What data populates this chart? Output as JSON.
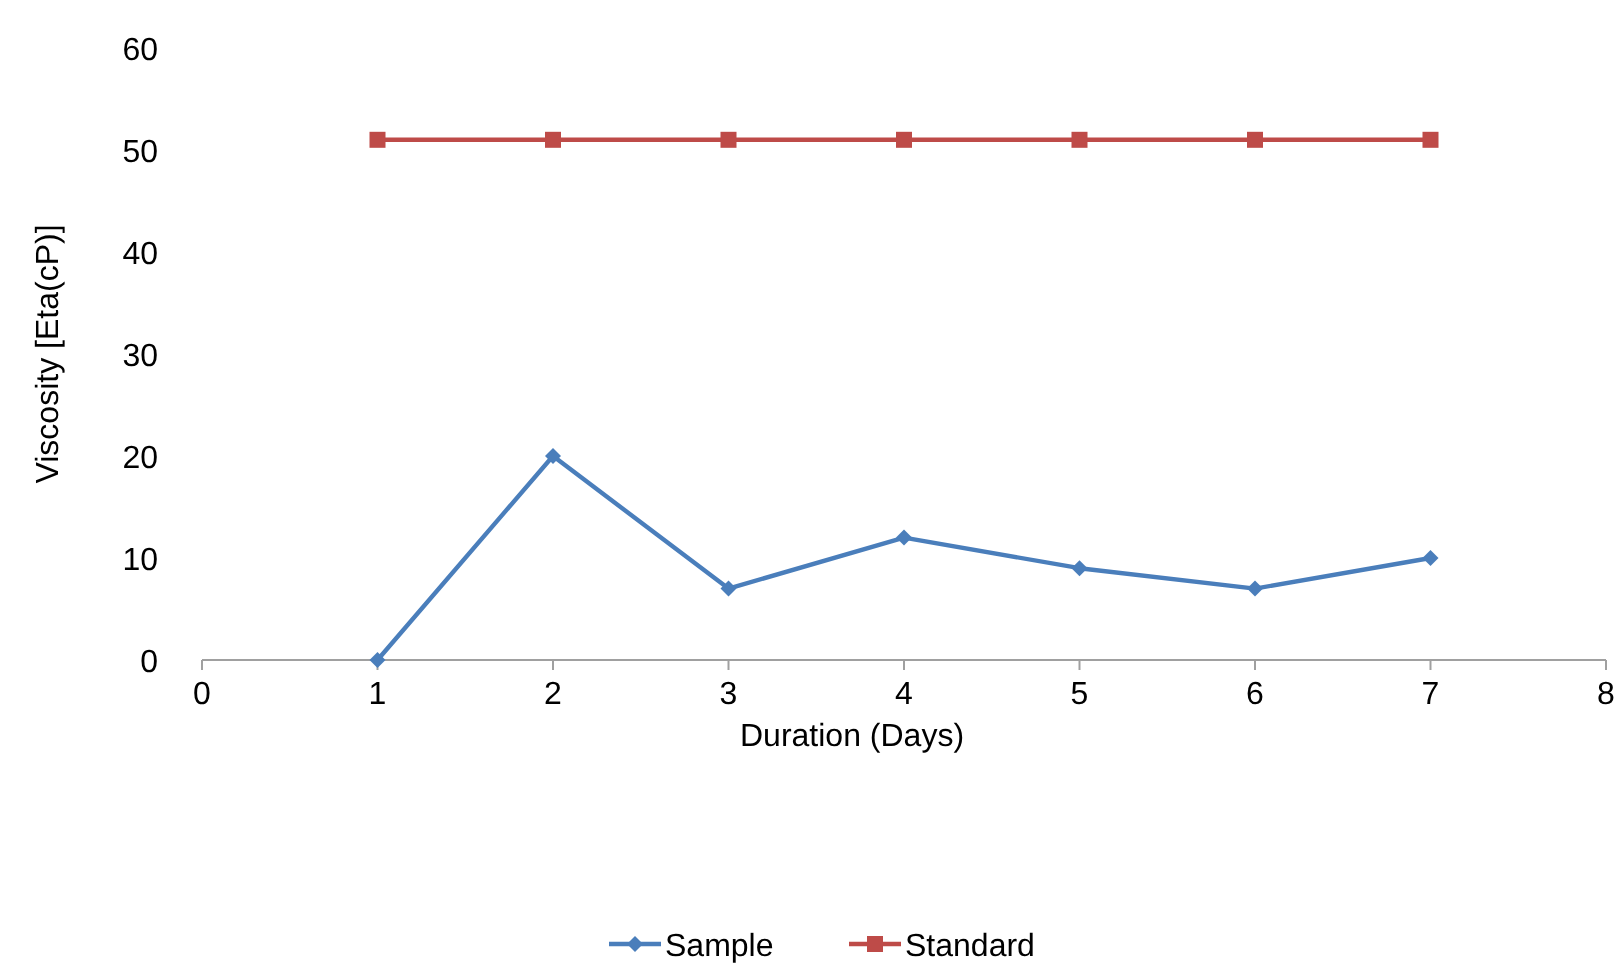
{
  "chart_data": {
    "type": "line",
    "xlabel": "Duration (Days)",
    "ylabel": "Viscosity [Eta(cP)]",
    "x": [
      1,
      2,
      3,
      4,
      5,
      6,
      7
    ],
    "series": [
      {
        "name": "Sample",
        "color": "#4a7ebb",
        "marker": "diamond",
        "values": [
          0,
          20,
          7,
          12,
          9,
          7,
          10
        ]
      },
      {
        "name": "Standard",
        "color": "#be4b48",
        "marker": "square",
        "values": [
          51,
          51,
          51,
          51,
          51,
          51,
          51
        ]
      }
    ],
    "xlim": [
      0,
      8
    ],
    "xticks": [
      0,
      1,
      2,
      3,
      4,
      5,
      6,
      7,
      8
    ],
    "ylim": [
      0,
      60
    ],
    "yticks": [
      0,
      10,
      20,
      30,
      40,
      50,
      60
    ],
    "grid": false,
    "legend": "bottom"
  }
}
